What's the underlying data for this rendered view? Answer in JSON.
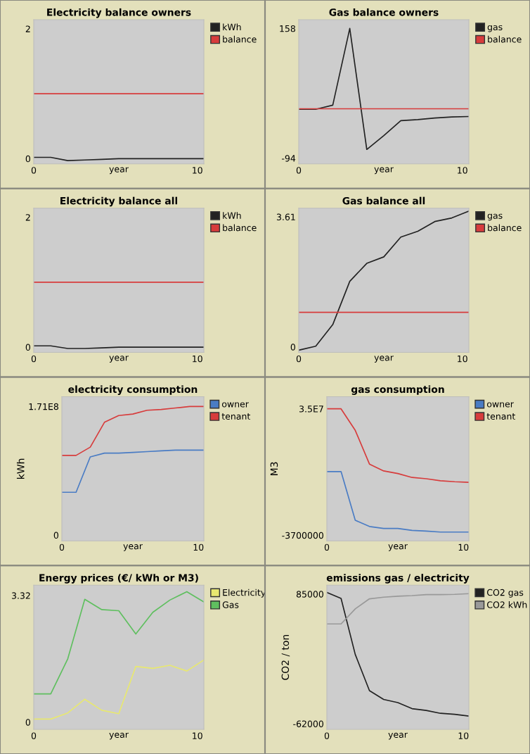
{
  "chart_data": [
    {
      "type": "line",
      "title": "Electricity balance owners",
      "xlabel": "year",
      "x": [
        0,
        1.04,
        2.08,
        3.12,
        4.16,
        5.2,
        6.24,
        7.28,
        8.32,
        9.36,
        10.4
      ],
      "xlim": [
        0,
        10.4
      ],
      "xticks": [
        0,
        10
      ],
      "ylim": [
        -0.08,
        2.14
      ],
      "yticks": [
        0,
        2
      ],
      "legend": "right",
      "grid": false,
      "series": [
        {
          "name": "kWh",
          "color": "#222222",
          "values": [
            0.02,
            0.02,
            -0.03,
            -0.02,
            -0.01,
            0,
            0,
            0,
            0,
            0,
            0
          ]
        },
        {
          "name": "balance",
          "color": "#d73c3c",
          "values": [
            1,
            1,
            1,
            1,
            1,
            1,
            1,
            1,
            1,
            1,
            1
          ]
        }
      ]
    },
    {
      "type": "line",
      "title": "Gas balance owners",
      "xlabel": "year",
      "x": [
        0,
        1.04,
        2.08,
        3.12,
        4.16,
        5.2,
        6.24,
        7.28,
        8.32,
        9.36,
        10.4
      ],
      "xlim": [
        0,
        10.4
      ],
      "xticks": [
        0,
        10
      ],
      "ylim": [
        -105,
        175
      ],
      "yticks": [
        -94,
        158
      ],
      "legend": "right",
      "grid": false,
      "series": [
        {
          "name": "gas",
          "color": "#222222",
          "values": [
            1,
            1,
            9,
            158,
            -77,
            -50,
            -21,
            -19,
            -16,
            -14,
            -13
          ]
        },
        {
          "name": "balance",
          "color": "#d73c3c",
          "values": [
            2,
            2,
            2,
            2,
            2,
            2,
            2,
            2,
            2,
            2,
            2
          ]
        }
      ]
    },
    {
      "type": "line",
      "title": "Electricity balance all",
      "xlabel": "year",
      "x": [
        0,
        1.04,
        2.08,
        3.12,
        4.16,
        5.2,
        6.24,
        7.28,
        8.32,
        9.36,
        10.4
      ],
      "xlim": [
        0,
        10.4
      ],
      "xticks": [
        0,
        10
      ],
      "ylim": [
        -0.08,
        2.14
      ],
      "yticks": [
        0,
        2
      ],
      "legend": "right",
      "grid": false,
      "series": [
        {
          "name": "kWh",
          "color": "#222222",
          "values": [
            0.02,
            0.02,
            -0.02,
            -0.02,
            -0.01,
            0,
            0,
            0,
            0,
            0,
            0
          ]
        },
        {
          "name": "balance",
          "color": "#d73c3c",
          "values": [
            1,
            1,
            1,
            1,
            1,
            1,
            1,
            1,
            1,
            1,
            1
          ]
        }
      ]
    },
    {
      "type": "line",
      "title": "Gas balance all",
      "xlabel": "year",
      "x": [
        0,
        1.04,
        2.08,
        3.12,
        4.16,
        5.2,
        6.24,
        7.28,
        8.32,
        9.36,
        10.4
      ],
      "xlim": [
        0,
        10.4
      ],
      "xticks": [
        0,
        10
      ],
      "ylim": [
        -0.15,
        3.85
      ],
      "yticks": [
        0,
        3.61
      ],
      "legend": "right",
      "grid": false,
      "series": [
        {
          "name": "gas",
          "color": "#222222",
          "values": [
            -0.09,
            0.02,
            0.62,
            1.82,
            2.32,
            2.5,
            3.05,
            3.21,
            3.48,
            3.58,
            3.77
          ]
        },
        {
          "name": "balance",
          "color": "#d73c3c",
          "values": [
            0.96,
            0.96,
            0.96,
            0.96,
            0.96,
            0.96,
            0.96,
            0.96,
            0.96,
            0.96,
            0.96
          ]
        }
      ]
    },
    {
      "type": "line",
      "title": "electricity consumption",
      "xlabel": "year",
      "ylabel": "kWh",
      "x": [
        0,
        1.04,
        2.08,
        3.12,
        4.16,
        5.2,
        6.24,
        7.28,
        8.32,
        9.36,
        10.4
      ],
      "xlim": [
        0,
        10.4
      ],
      "xticks": [
        0,
        10
      ],
      "ylim": [
        -7600000,
        184000000
      ],
      "yticks": [
        0,
        {
          "value": 171000000,
          "label": "1.71E8"
        }
      ],
      "legend": "right",
      "grid": false,
      "series": [
        {
          "name": "owner",
          "color": "#4a7cc4",
          "values": [
            57000000,
            57000000,
            104000000,
            109000000,
            109000000,
            110000000,
            111000000,
            112000000,
            113000000,
            113000000,
            113000000
          ]
        },
        {
          "name": "tenant",
          "color": "#d73c3c",
          "values": [
            106000000,
            106000000,
            117000000,
            150000000,
            159000000,
            161000000,
            166000000,
            167000000,
            169000000,
            171000000,
            171000000
          ]
        }
      ]
    },
    {
      "type": "line",
      "title": "gas consumption",
      "xlabel": "year",
      "ylabel": "M3",
      "x": [
        0,
        1.04,
        2.08,
        3.12,
        4.16,
        5.2,
        6.24,
        7.28,
        8.32,
        9.36,
        10.4
      ],
      "xlim": [
        0,
        10.4
      ],
      "xticks": [
        0,
        10
      ],
      "ylim": [
        -5400000,
        38700000
      ],
      "yticks": [
        -3700000,
        {
          "value": 35000000,
          "label": "3.5E7"
        }
      ],
      "legend": "right",
      "grid": false,
      "series": [
        {
          "name": "owner",
          "color": "#4a7cc4",
          "values": [
            15800000,
            15800000,
            900000,
            -1000000,
            -1600000,
            -1600000,
            -2200000,
            -2400000,
            -2700000,
            -2700000,
            -2700000
          ]
        },
        {
          "name": "tenant",
          "color": "#d73c3c",
          "values": [
            35000000,
            35000000,
            28400000,
            18100000,
            16000000,
            15200000,
            14000000,
            13600000,
            13000000,
            12700000,
            12500000
          ]
        }
      ]
    },
    {
      "type": "line",
      "title": "Energy prices (€/ kWh or M3)",
      "xlabel": "year",
      "x": [
        0,
        1.04,
        2.08,
        3.12,
        4.16,
        5.2,
        6.24,
        7.28,
        8.32,
        9.36,
        10.4
      ],
      "xlim": [
        0,
        10.4
      ],
      "xticks": [
        0,
        10
      ],
      "ylim": [
        -0.19,
        3.59
      ],
      "yticks": [
        0,
        3.32
      ],
      "legend": "right",
      "grid": false,
      "series": [
        {
          "name": "Electricity",
          "color": "#e8e870",
          "values": [
            0.08,
            0.08,
            0.24,
            0.6,
            0.31,
            0.22,
            1.46,
            1.41,
            1.49,
            1.34,
            1.63
          ]
        },
        {
          "name": "Gas",
          "color": "#5fbf5f",
          "values": [
            0.74,
            0.74,
            1.66,
            3.22,
            2.95,
            2.92,
            2.31,
            2.88,
            3.2,
            3.42,
            3.15
          ]
        }
      ]
    },
    {
      "type": "line",
      "title": "emissions gas / electricity",
      "xlabel": "year",
      "ylabel": "CO2 / ton",
      "x": [
        0,
        1.04,
        2.08,
        3.12,
        4.16,
        5.2,
        6.24,
        7.28,
        8.32,
        9.36,
        10.4
      ],
      "xlim": [
        0,
        10.4
      ],
      "xticks": [
        0,
        10
      ],
      "ylim": [
        -68400,
        95000
      ],
      "yticks": [
        -62000,
        85000
      ],
      "legend": "right",
      "grid": false,
      "series": [
        {
          "name": "CO2 gas",
          "color": "#222222",
          "values": [
            86800,
            80000,
            16500,
            -24500,
            -34500,
            -38100,
            -44900,
            -47000,
            -50200,
            -51300,
            -53400
          ]
        },
        {
          "name": "CO2 kWh",
          "color": "#999999",
          "values": [
            51100,
            51100,
            68200,
            79600,
            81400,
            82500,
            83200,
            84300,
            84300,
            84600,
            85400
          ]
        }
      ]
    }
  ]
}
